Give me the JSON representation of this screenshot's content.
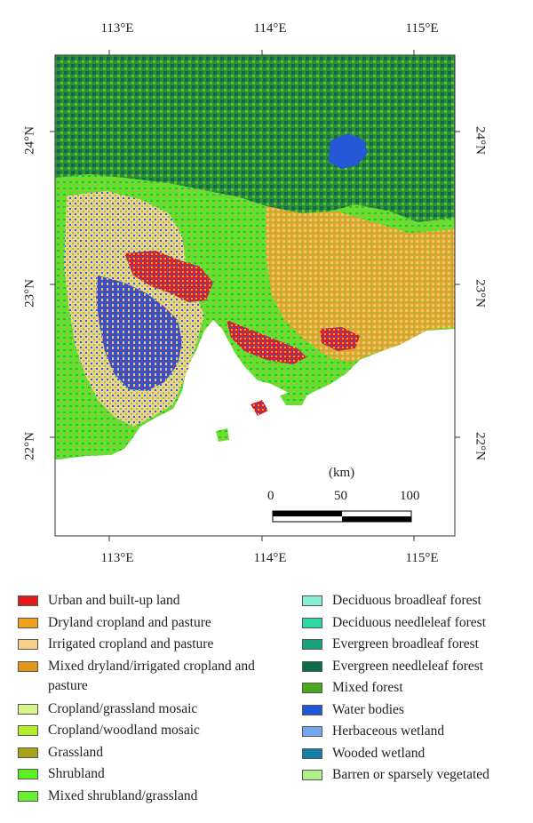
{
  "map": {
    "top_ticks": [
      "113°E",
      "114°E",
      "115°E"
    ],
    "bottom_ticks": [
      "113°E",
      "114°E",
      "115°E"
    ],
    "left_ticks": [
      "24°N",
      "23°N",
      "22°N"
    ],
    "right_ticks": [
      "24°N",
      "23°N",
      "22°N"
    ],
    "scale_bar": {
      "unit": "(km)",
      "labels": [
        "0",
        "50",
        "100"
      ]
    }
  },
  "legend": {
    "left_column": [
      {
        "label": "Urban and built-up land",
        "color": "#e41a1c"
      },
      {
        "label": "Dryland cropland and pasture",
        "color": "#f0a01e"
      },
      {
        "label": "Irrigated cropland and pasture",
        "color": "#f7cf8c"
      },
      {
        "label": "Mixed dryland/irrigated cropland and pasture",
        "color": "#e0961a"
      },
      {
        "label": "Cropland/grassland mosaic",
        "color": "#d8f58c"
      },
      {
        "label": "Cropland/woodland mosaic",
        "color": "#b4ee2a"
      },
      {
        "label": "Grassland",
        "color": "#a7a41c"
      },
      {
        "label": "Shrubland",
        "color": "#5cf022"
      },
      {
        "label": "Mixed shrubland/grassland",
        "color": "#66f030"
      }
    ],
    "right_column": [
      {
        "label": "Deciduous broadleaf forest",
        "color": "#86f0d6"
      },
      {
        "label": "Deciduous needleleaf forest",
        "color": "#2fd7a4"
      },
      {
        "label": "Evergreen broadleaf forest",
        "color": "#1aa07c"
      },
      {
        "label": "Evergreen needleleaf forest",
        "color": "#0b6c46"
      },
      {
        "label": "Mixed forest",
        "color": "#48a81e"
      },
      {
        "label": "Water bodies",
        "color": "#1f58d8"
      },
      {
        "label": "Herbaceous wetland",
        "color": "#74a8ec"
      },
      {
        "label": "Wooded wetland",
        "color": "#147ea4"
      },
      {
        "label": "Barren or sparsely vegetated",
        "color": "#aef088"
      }
    ]
  }
}
